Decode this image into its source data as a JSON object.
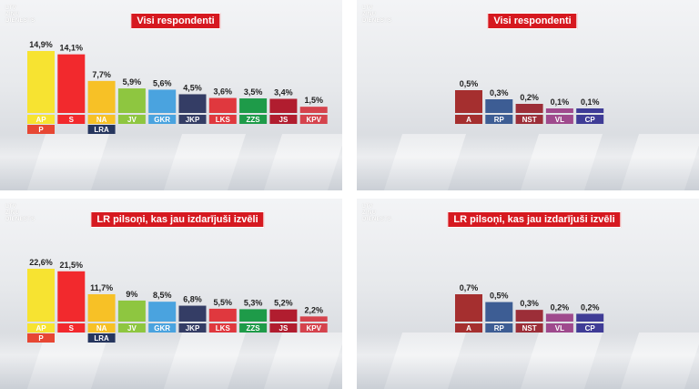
{
  "panels": [
    {
      "brand": [
        "LTV",
        "ZIŅU",
        "DIENESTS"
      ],
      "title": "Visi respondenti"
    },
    {
      "brand": [
        "LTV",
        "ZIŅU",
        "DIENESTS"
      ],
      "title": "Visi respondenti"
    },
    {
      "brand": [
        "LTV",
        "ZIŅU",
        "DIENESTS"
      ],
      "title": "LR pilsoņi, kas jau izdarījuši izvēli"
    },
    {
      "brand": [
        "LTV",
        "ZIŅU",
        "DIENESTS"
      ],
      "title": "LR pilsoņi, kas jau izdarījuši izvēli"
    }
  ],
  "colors": {
    "title_bg": "#d61920",
    "AP": "#f7e331",
    "S": "#f2292d",
    "NA": "#f7c126",
    "JV": "#8ec640",
    "GKR": "#4aa3df",
    "JKP": "#343d65",
    "LKS": "#e0383e",
    "ZZS": "#1e9b49",
    "JS": "#b11d2f",
    "KPV": "#d5434d",
    "P": "#e74733",
    "LRA": "#26365e",
    "A": "#a52f2f",
    "RP": "#3d5d94",
    "NST": "#9c2e38",
    "VL": "#9f4a8d",
    "CP": "#3f3c96"
  },
  "chart_data": [
    {
      "type": "bar",
      "title": "Visi respondenti",
      "categories": [
        "AP",
        "S",
        "NA",
        "JV",
        "GKR",
        "JKP",
        "LKS",
        "ZZS",
        "JS",
        "KPV"
      ],
      "values": [
        14.9,
        14.1,
        7.7,
        5.9,
        5.6,
        4.5,
        3.6,
        3.5,
        3.4,
        1.5
      ],
      "value_labels": [
        "14,9%",
        "14,1%",
        "7,7%",
        "5,9%",
        "5,6%",
        "4,5%",
        "3,6%",
        "3,5%",
        "3,4%",
        "1,5%"
      ],
      "sub_labels": {
        "AP": "P",
        "NA": "LRA"
      }
    },
    {
      "type": "bar",
      "title": "Visi respondenti",
      "categories": [
        "A",
        "RP",
        "NST",
        "VL",
        "CP"
      ],
      "values": [
        0.5,
        0.3,
        0.2,
        0.1,
        0.1
      ],
      "value_labels": [
        "0,5%",
        "0,3%",
        "0,2%",
        "0,1%",
        "0,1%"
      ]
    },
    {
      "type": "bar",
      "title": "LR pilsoņi, kas jau izdarījuši izvēli",
      "categories": [
        "AP",
        "S",
        "NA",
        "JV",
        "GKR",
        "JKP",
        "LKS",
        "ZZS",
        "JS",
        "KPV"
      ],
      "values": [
        22.6,
        21.5,
        11.7,
        9,
        8.5,
        6.8,
        5.5,
        5.3,
        5.2,
        2.2
      ],
      "value_labels": [
        "22,6%",
        "21,5%",
        "11,7%",
        "9%",
        "8,5%",
        "6,8%",
        "5,5%",
        "5,3%",
        "5,2%",
        "2,2%"
      ],
      "sub_labels": {
        "AP": "P",
        "NA": "LRA"
      }
    },
    {
      "type": "bar",
      "title": "LR pilsoņi, kas jau izdarījuši izvēli",
      "categories": [
        "A",
        "RP",
        "NST",
        "VL",
        "CP"
      ],
      "values": [
        0.7,
        0.5,
        0.3,
        0.2,
        0.2
      ],
      "value_labels": [
        "0,7%",
        "0,5%",
        "0,3%",
        "0,2%",
        "0,2%"
      ]
    }
  ]
}
